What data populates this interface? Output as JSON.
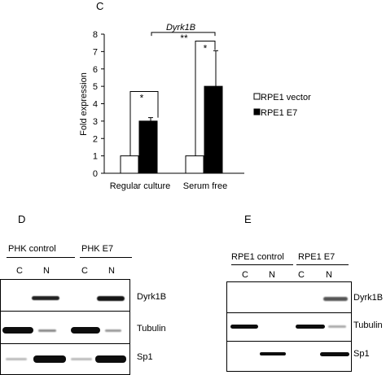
{
  "panels": {
    "c": "C",
    "d": "D",
    "e": "E"
  },
  "chart_data": {
    "type": "bar",
    "title": "Dyrk1B",
    "xlabel": "",
    "ylabel": "Fold expression",
    "ylim": [
      0,
      8
    ],
    "yticks": [
      "0",
      "1",
      "2",
      "3",
      "4",
      "5",
      "6",
      "7",
      "8"
    ],
    "categories": [
      "Regular culture",
      "Serum free"
    ],
    "series": [
      {
        "name": "RPE1 vector",
        "values": [
          1,
          1
        ],
        "color": "#ffffff",
        "errors": [
          0,
          0
        ]
      },
      {
        "name": "RPE1 E7",
        "values": [
          3,
          5
        ],
        "color": "#000000",
        "errors": [
          0.2,
          2.05
        ]
      }
    ],
    "annotations": [
      "*",
      "*",
      "**"
    ],
    "legend_position": "right",
    "grid": false
  },
  "blot_d": {
    "groups": [
      "PHK control",
      "PHK E7"
    ],
    "lanes": [
      "C",
      "N",
      "C",
      "N"
    ],
    "rows": [
      "Dyrk1B",
      "Tubulin",
      "Sp1"
    ]
  },
  "blot_e": {
    "groups": [
      "RPE1 control",
      "RPE1 E7"
    ],
    "lanes": [
      "C",
      "N",
      "C",
      "N"
    ],
    "rows": [
      "Dyrk1B",
      "Tubulin",
      "Sp1"
    ]
  },
  "colors": {
    "band": "#141414",
    "background": "#ffffff"
  }
}
